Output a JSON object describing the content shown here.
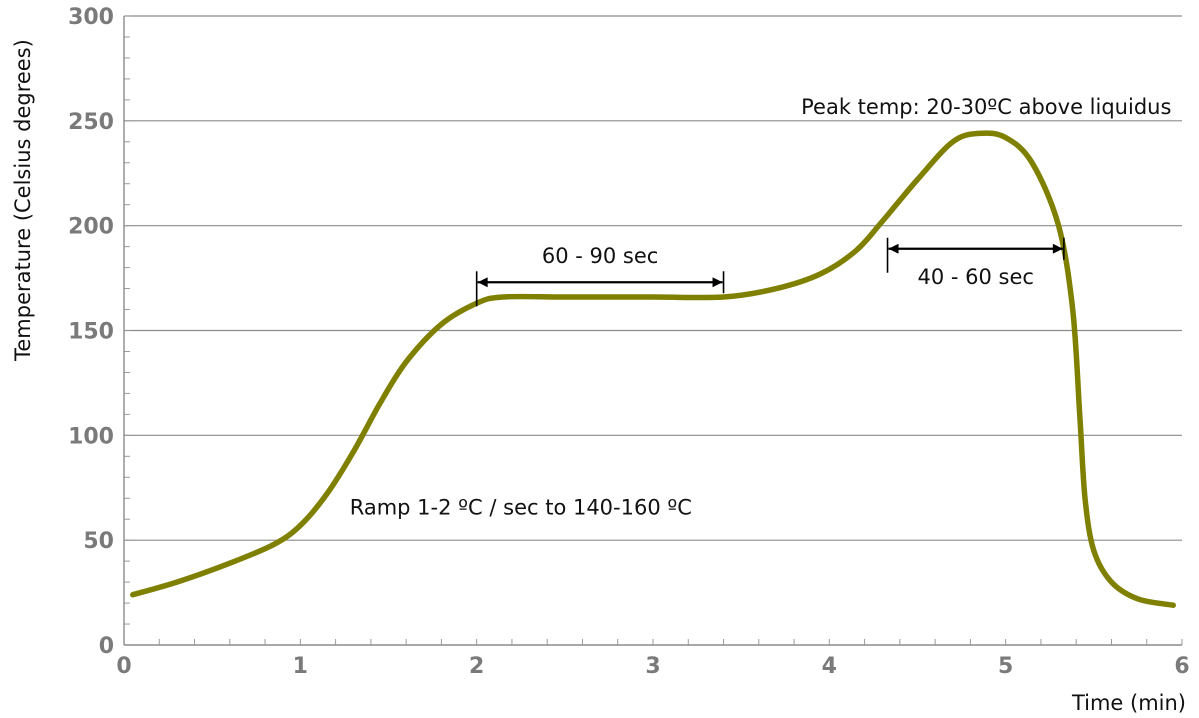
{
  "chart_data": {
    "type": "line",
    "xlabel": "Time (min)",
    "ylabel": "Temperature (Celsius degrees)",
    "xlim": [
      0,
      6
    ],
    "ylim": [
      0,
      300
    ],
    "x_ticks": [
      0,
      1,
      2,
      3,
      4,
      5,
      6
    ],
    "y_ticks": [
      0,
      50,
      100,
      150,
      200,
      250,
      300
    ],
    "x_tick_labels": [
      "0",
      "1",
      "2",
      "3",
      "4",
      "5",
      "6"
    ],
    "y_tick_labels": [
      "0",
      "50",
      "100",
      "150",
      "200",
      "250",
      "300"
    ],
    "grid": "horizontal",
    "series": [
      {
        "color": "#808000",
        "x": [
          0.05,
          0.3,
          0.6,
          0.85,
          1.0,
          1.15,
          1.3,
          1.45,
          1.6,
          1.8,
          2.0,
          2.15,
          2.5,
          3.0,
          3.4,
          3.7,
          3.95,
          4.15,
          4.3,
          4.5,
          4.7,
          4.85,
          5.0,
          5.15,
          5.3,
          5.38,
          5.42,
          5.45,
          5.5,
          5.6,
          5.75,
          5.95
        ],
        "y": [
          24,
          30,
          39,
          48,
          57,
          72,
          92,
          115,
          135,
          153,
          163,
          166,
          166,
          166,
          166,
          170,
          177,
          188,
          202,
          222,
          240,
          244,
          242,
          230,
          200,
          160,
          110,
          70,
          45,
          30,
          22,
          19
        ]
      }
    ],
    "annotations": [
      {
        "text": "Peak temp: 20-30ºC above liquidus",
        "x": 5.94,
        "y": 257,
        "anchor": "end"
      },
      {
        "text": "Ramp 1-2 ºC / sec to 140-160 ºC",
        "x": 1.28,
        "y": 66,
        "anchor": "start"
      },
      {
        "text": "60 - 90 sec",
        "x_start": 2.0,
        "x_end": 3.4,
        "y": 173,
        "label_y": 186
      },
      {
        "text": "40 - 60 sec",
        "x_start": 4.33,
        "x_end": 5.33,
        "y": 189,
        "label_y": 176
      }
    ]
  }
}
